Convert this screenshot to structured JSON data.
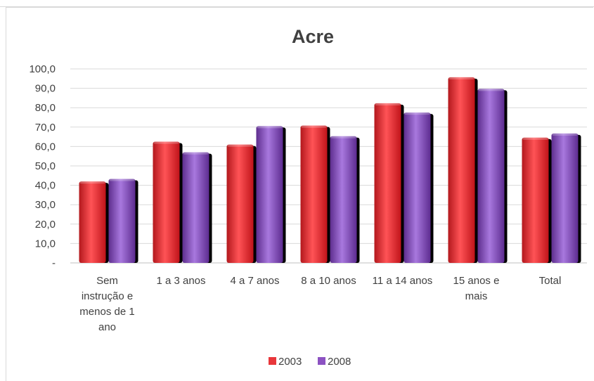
{
  "chart_data": {
    "type": "bar",
    "title": "Acre",
    "categories": [
      [
        "Sem",
        "instrução e",
        "menos de 1",
        "ano"
      ],
      [
        "1 a 3 anos"
      ],
      [
        "4 a 7 anos"
      ],
      [
        "8 a 10 anos"
      ],
      [
        "11 a 14 anos"
      ],
      [
        "15 anos e",
        "mais"
      ],
      [
        "Total"
      ]
    ],
    "series": [
      {
        "name": "2003",
        "color": "#e8363a",
        "values": [
          42.0,
          62.5,
          61.0,
          70.8,
          82.3,
          95.7,
          64.6
        ]
      },
      {
        "name": "2008",
        "color": "#8c52c2",
        "values": [
          43.3,
          57.0,
          70.5,
          65.3,
          77.5,
          89.7,
          66.7
        ]
      }
    ],
    "ylim": [
      0,
      100
    ],
    "ytick_labels": [
      "-",
      "10,0",
      "20,0",
      "30,0",
      "40,0",
      "50,0",
      "60,0",
      "70,0",
      "80,0",
      "90,0",
      "100,0"
    ],
    "grid": true,
    "legend_position": "bottom"
  }
}
